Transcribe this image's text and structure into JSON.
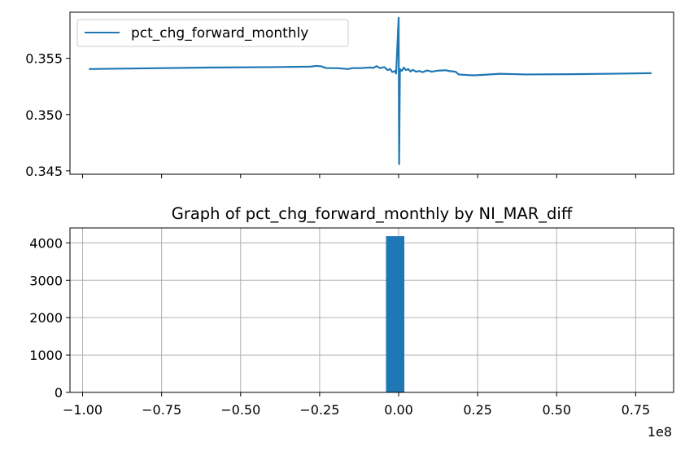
{
  "chart_data": [
    {
      "type": "line",
      "title": "",
      "xlabel": "",
      "ylabel": "",
      "legend": {
        "placement": "upper-left",
        "entries": [
          "pct_chg_forward_monthly"
        ]
      },
      "grid": false,
      "show_x_tick_labels": false,
      "xlim": [
        -104000000,
        87000000
      ],
      "ylim": [
        0.3447,
        0.3591
      ],
      "y_ticks": [
        0.345,
        0.35,
        0.355
      ],
      "y_tick_labels": [
        "0.345",
        "0.350",
        "0.355"
      ],
      "x_ticks": [
        -100000000,
        -75000000,
        -50000000,
        -25000000,
        0,
        25000000,
        50000000,
        75000000
      ],
      "series": [
        {
          "name": "pct_chg_forward_monthly",
          "color": "#1f77b4",
          "points": [
            [
              -98000000,
              0.35405
            ],
            [
              -80000000,
              0.35411
            ],
            [
              -60000000,
              0.35418
            ],
            [
              -40000000,
              0.35422
            ],
            [
              -28000000,
              0.35426
            ],
            [
              -26000000,
              0.35433
            ],
            [
              -24500000,
              0.35429
            ],
            [
              -23000000,
              0.35414
            ],
            [
              -19000000,
              0.35412
            ],
            [
              -16000000,
              0.35405
            ],
            [
              -14500000,
              0.35414
            ],
            [
              -12000000,
              0.35413
            ],
            [
              -9000000,
              0.35419
            ],
            [
              -8000000,
              0.35415
            ],
            [
              -7000000,
              0.35431
            ],
            [
              -6000000,
              0.35414
            ],
            [
              -4500000,
              0.35422
            ],
            [
              -3500000,
              0.35395
            ],
            [
              -2700000,
              0.35405
            ],
            [
              -2000000,
              0.35378
            ],
            [
              -1200000,
              0.35387
            ],
            [
              -800000,
              0.35365
            ],
            [
              0,
              0.3586
            ],
            [
              150000,
              0.3456
            ],
            [
              400000,
              0.35405
            ],
            [
              1000000,
              0.35388
            ],
            [
              1600000,
              0.35418
            ],
            [
              2300000,
              0.35395
            ],
            [
              3000000,
              0.35405
            ],
            [
              3700000,
              0.35383
            ],
            [
              4500000,
              0.35398
            ],
            [
              5500000,
              0.35381
            ],
            [
              6500000,
              0.35388
            ],
            [
              7500000,
              0.35377
            ],
            [
              9000000,
              0.35392
            ],
            [
              10500000,
              0.35381
            ],
            [
              12500000,
              0.35391
            ],
            [
              15000000,
              0.35394
            ],
            [
              16000000,
              0.35387
            ],
            [
              18000000,
              0.35381
            ],
            [
              19000000,
              0.35357
            ],
            [
              22000000,
              0.35351
            ],
            [
              24000000,
              0.35349
            ],
            [
              27000000,
              0.35354
            ],
            [
              32000000,
              0.35363
            ],
            [
              40000000,
              0.35357
            ],
            [
              55000000,
              0.35359
            ],
            [
              70000000,
              0.35364
            ],
            [
              80000000,
              0.35368
            ]
          ]
        }
      ]
    },
    {
      "type": "bar",
      "title": "Graph of pct_chg_forward_monthly by NI_MAR_diff",
      "xlabel": "",
      "ylabel": "",
      "grid": true,
      "color": "#1f77b4",
      "xlim": [
        -104000000,
        87000000
      ],
      "ylim": [
        0,
        4400
      ],
      "x_ticks": [
        -100000000,
        -75000000,
        -50000000,
        -25000000,
        0,
        25000000,
        50000000,
        75000000
      ],
      "x_tick_labels": [
        "−1.00",
        "−0.75",
        "−0.50",
        "−0.25",
        "0.00",
        "0.25",
        "0.50",
        "0.75"
      ],
      "x_offset_label": "1e8",
      "y_ticks": [
        0,
        1000,
        2000,
        3000,
        4000
      ],
      "y_tick_labels": [
        "0",
        "1000",
        "2000",
        "3000",
        "4000"
      ],
      "bars": [
        {
          "x_start": -4000000,
          "x_end": 1800000,
          "value": 4180
        }
      ]
    }
  ]
}
